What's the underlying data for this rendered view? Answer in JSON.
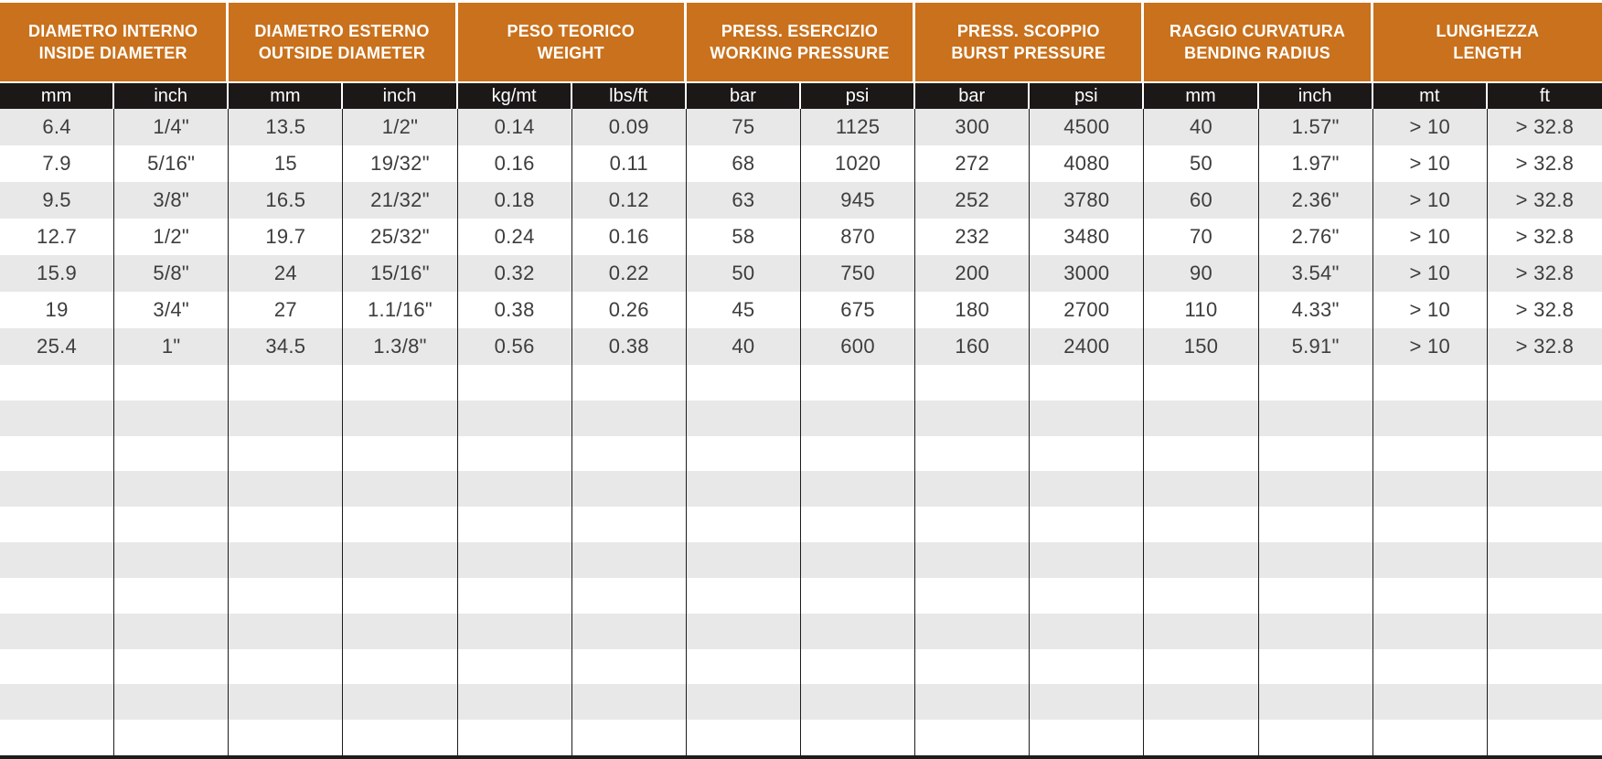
{
  "table": {
    "header_groups": [
      {
        "line1": "DIAMETRO INTERNO",
        "line2": "INSIDE DIAMETER",
        "units": [
          "mm",
          "inch"
        ]
      },
      {
        "line1": "DIAMETRO ESTERNO",
        "line2": "OUTSIDE DIAMETER",
        "units": [
          "mm",
          "inch"
        ]
      },
      {
        "line1": "PESO TEORICO",
        "line2": "WEIGHT",
        "units": [
          "kg/mt",
          "lbs/ft"
        ]
      },
      {
        "line1": "PRESS. ESERCIZIO",
        "line2": "WORKING PRESSURE",
        "units": [
          "bar",
          "psi"
        ]
      },
      {
        "line1": "PRESS. SCOPPIO",
        "line2": "BURST PRESSURE",
        "units": [
          "bar",
          "psi"
        ]
      },
      {
        "line1": "RAGGIO CURVATURA",
        "line2": "BENDING RADIUS",
        "units": [
          "mm",
          "inch"
        ]
      },
      {
        "line1": "LUNGHEZZA",
        "line2": "LENGTH",
        "units": [
          "mt",
          "ft"
        ]
      }
    ],
    "rows": [
      [
        "6.4",
        "1/4\"",
        "13.5",
        "1/2\"",
        "0.14",
        "0.09",
        "75",
        "1125",
        "300",
        "4500",
        "40",
        "1.57\"",
        "> 10",
        "> 32.8"
      ],
      [
        "7.9",
        "5/16\"",
        "15",
        "19/32\"",
        "0.16",
        "0.11",
        "68",
        "1020",
        "272",
        "4080",
        "50",
        "1.97\"",
        "> 10",
        "> 32.8"
      ],
      [
        "9.5",
        "3/8\"",
        "16.5",
        "21/32\"",
        "0.18",
        "0.12",
        "63",
        "945",
        "252",
        "3780",
        "60",
        "2.36\"",
        "> 10",
        "> 32.8"
      ],
      [
        "12.7",
        "1/2\"",
        "19.7",
        "25/32\"",
        "0.24",
        "0.16",
        "58",
        "870",
        "232",
        "3480",
        "70",
        "2.76\"",
        "> 10",
        "> 32.8"
      ],
      [
        "15.9",
        "5/8\"",
        "24",
        "15/16\"",
        "0.32",
        "0.22",
        "50",
        "750",
        "200",
        "3000",
        "90",
        "3.54\"",
        "> 10",
        "> 32.8"
      ],
      [
        "19",
        "3/4\"",
        "27",
        "1.1/16\"",
        "0.38",
        "0.26",
        "45",
        "675",
        "180",
        "2700",
        "110",
        "4.33\"",
        "> 10",
        "> 32.8"
      ],
      [
        "25.4",
        "1\"",
        "34.5",
        "1.3/8\"",
        "0.56",
        "0.38",
        "40",
        "600",
        "160",
        "2400",
        "150",
        "5.91\"",
        "> 10",
        "> 32.8"
      ]
    ],
    "empty_row_count": 11,
    "colors": {
      "header_bg": "#C9711C",
      "units_bg": "#1B1817",
      "stripe_gray": "#E8E8E8",
      "stripe_white": "#FFFFFF",
      "text": "#3D3D3D",
      "grid_line": "#1C1C1C"
    }
  }
}
